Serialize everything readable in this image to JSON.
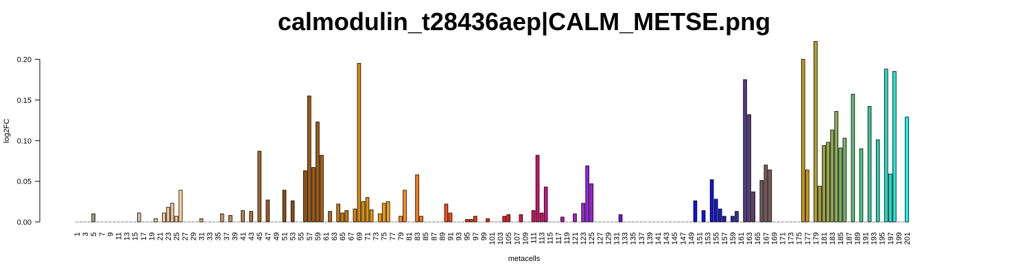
{
  "chart_data": {
    "type": "bar",
    "title": "calmodulin_t28436aep|CALM_METSE.png",
    "xlabel": "metacells",
    "ylabel": "log2FC",
    "ylim": [
      0,
      0.225
    ],
    "yticks": [
      0.0,
      0.05,
      0.1,
      0.15,
      0.2
    ],
    "ytick_labels": [
      "0.00",
      "0.05",
      "0.10",
      "0.15",
      "0.20"
    ],
    "x_start": 1,
    "x_end": 201,
    "xtick_step": 2,
    "bar_edge_color": "#000000",
    "baseline_color": "#7f7f7f",
    "bars": [
      {
        "x": 5,
        "value": 0.01,
        "color": "#9c9c84"
      },
      {
        "x": 16,
        "value": 0.011,
        "color": "#d9bfa6"
      },
      {
        "x": 20,
        "value": 0.004,
        "color": "#e5c5a5"
      },
      {
        "x": 22,
        "value": 0.011,
        "color": "#eec49a"
      },
      {
        "x": 23,
        "value": 0.018,
        "color": "#eec49a"
      },
      {
        "x": 24,
        "value": 0.023,
        "color": "#eec49a"
      },
      {
        "x": 25,
        "value": 0.007,
        "color": "#f5c893"
      },
      {
        "x": 26,
        "value": 0.039,
        "color": "#fcd49c"
      },
      {
        "x": 31,
        "value": 0.004,
        "color": "#d9a877"
      },
      {
        "x": 36,
        "value": 0.01,
        "color": "#c89667"
      },
      {
        "x": 38,
        "value": 0.008,
        "color": "#c08a58"
      },
      {
        "x": 41,
        "value": 0.014,
        "color": "#b67b45"
      },
      {
        "x": 43,
        "value": 0.013,
        "color": "#ab6e36"
      },
      {
        "x": 45,
        "value": 0.087,
        "color": "#a5642b"
      },
      {
        "x": 47,
        "value": 0.027,
        "color": "#9a5b25"
      },
      {
        "x": 51,
        "value": 0.039,
        "color": "#8c4c15"
      },
      {
        "x": 53,
        "value": 0.026,
        "color": "#8b4e13"
      },
      {
        "x": 56,
        "value": 0.063,
        "color": "#94510f"
      },
      {
        "x": 57,
        "value": 0.155,
        "color": "#a15a10"
      },
      {
        "x": 58,
        "value": 0.067,
        "color": "#a15a10"
      },
      {
        "x": 59,
        "value": 0.123,
        "color": "#a15a10"
      },
      {
        "x": 60,
        "value": 0.082,
        "color": "#a85f12"
      },
      {
        "x": 62,
        "value": 0.013,
        "color": "#b66a12"
      },
      {
        "x": 64,
        "value": 0.022,
        "color": "#c57812"
      },
      {
        "x": 65,
        "value": 0.011,
        "color": "#c57812"
      },
      {
        "x": 66,
        "value": 0.014,
        "color": "#c57812"
      },
      {
        "x": 68,
        "value": 0.016,
        "color": "#d0830f"
      },
      {
        "x": 69,
        "value": 0.195,
        "color": "#d88a0f"
      },
      {
        "x": 70,
        "value": 0.025,
        "color": "#e0900f"
      },
      {
        "x": 71,
        "value": 0.03,
        "color": "#e0900f"
      },
      {
        "x": 72,
        "value": 0.015,
        "color": "#e8960f"
      },
      {
        "x": 74,
        "value": 0.01,
        "color": "#f29c10"
      },
      {
        "x": 75,
        "value": 0.023,
        "color": "#f29c10"
      },
      {
        "x": 76,
        "value": 0.025,
        "color": "#f6a21a"
      },
      {
        "x": 79,
        "value": 0.007,
        "color": "#f58e18"
      },
      {
        "x": 80,
        "value": 0.039,
        "color": "#f58e18"
      },
      {
        "x": 83,
        "value": 0.058,
        "color": "#f57c14"
      },
      {
        "x": 84,
        "value": 0.007,
        "color": "#f57c14"
      },
      {
        "x": 90,
        "value": 0.022,
        "color": "#f24d14"
      },
      {
        "x": 91,
        "value": 0.011,
        "color": "#f24d14"
      },
      {
        "x": 95,
        "value": 0.003,
        "color": "#f23a14"
      },
      {
        "x": 96,
        "value": 0.003,
        "color": "#f03a16"
      },
      {
        "x": 97,
        "value": 0.007,
        "color": "#f03a16"
      },
      {
        "x": 100,
        "value": 0.004,
        "color": "#ee2616"
      },
      {
        "x": 104,
        "value": 0.007,
        "color": "#e81c22"
      },
      {
        "x": 105,
        "value": 0.009,
        "color": "#e81c22"
      },
      {
        "x": 108,
        "value": 0.009,
        "color": "#e0183a"
      },
      {
        "x": 111,
        "value": 0.014,
        "color": "#cc1466"
      },
      {
        "x": 112,
        "value": 0.082,
        "color": "#cc1466"
      },
      {
        "x": 113,
        "value": 0.011,
        "color": "#cc1466"
      },
      {
        "x": 114,
        "value": 0.043,
        "color": "#c71480"
      },
      {
        "x": 118,
        "value": 0.006,
        "color": "#b81aa8"
      },
      {
        "x": 121,
        "value": 0.01,
        "color": "#a81cc8"
      },
      {
        "x": 123,
        "value": 0.023,
        "color": "#a020d8"
      },
      {
        "x": 124,
        "value": 0.069,
        "color": "#9c20de"
      },
      {
        "x": 125,
        "value": 0.047,
        "color": "#9c20de"
      },
      {
        "x": 132,
        "value": 0.009,
        "color": "#7a10e0"
      },
      {
        "x": 150,
        "value": 0.026,
        "color": "#1010e8"
      },
      {
        "x": 152,
        "value": 0.014,
        "color": "#1212e0"
      },
      {
        "x": 154,
        "value": 0.052,
        "color": "#1414d8"
      },
      {
        "x": 155,
        "value": 0.028,
        "color": "#1616d0"
      },
      {
        "x": 156,
        "value": 0.016,
        "color": "#1a1ac4"
      },
      {
        "x": 157,
        "value": 0.007,
        "color": "#2020b8"
      },
      {
        "x": 159,
        "value": 0.007,
        "color": "#2828a8"
      },
      {
        "x": 160,
        "value": 0.013,
        "color": "#2e2e9c"
      },
      {
        "x": 162,
        "value": 0.175,
        "color": "#4d3a8a"
      },
      {
        "x": 163,
        "value": 0.132,
        "color": "#5a3c7c"
      },
      {
        "x": 164,
        "value": 0.037,
        "color": "#63406e"
      },
      {
        "x": 166,
        "value": 0.051,
        "color": "#735660"
      },
      {
        "x": 167,
        "value": 0.07,
        "color": "#7a5a5a"
      },
      {
        "x": 168,
        "value": 0.064,
        "color": "#7a5a5a"
      },
      {
        "x": 176,
        "value": 0.2,
        "color": "#c8961a"
      },
      {
        "x": 177,
        "value": 0.064,
        "color": "#c8961a"
      },
      {
        "x": 179,
        "value": 0.222,
        "color": "#b0a02c"
      },
      {
        "x": 180,
        "value": 0.044,
        "color": "#a4a036"
      },
      {
        "x": 181,
        "value": 0.094,
        "color": "#98a03e"
      },
      {
        "x": 182,
        "value": 0.098,
        "color": "#98a848"
      },
      {
        "x": 183,
        "value": 0.113,
        "color": "#8fa850"
      },
      {
        "x": 184,
        "value": 0.136,
        "color": "#88b058"
      },
      {
        "x": 185,
        "value": 0.091,
        "color": "#7cb060"
      },
      {
        "x": 186,
        "value": 0.103,
        "color": "#72b466"
      },
      {
        "x": 188,
        "value": 0.157,
        "color": "#5cbc78"
      },
      {
        "x": 190,
        "value": 0.09,
        "color": "#48c488"
      },
      {
        "x": 192,
        "value": 0.142,
        "color": "#3cc898"
      },
      {
        "x": 194,
        "value": 0.101,
        "color": "#30d0b0"
      },
      {
        "x": 196,
        "value": 0.188,
        "color": "#28dcc4"
      },
      {
        "x": 197,
        "value": 0.059,
        "color": "#22e0d0"
      },
      {
        "x": 198,
        "value": 0.185,
        "color": "#1ce8d8"
      },
      {
        "x": 201,
        "value": 0.129,
        "color": "#10f4f4"
      }
    ]
  }
}
